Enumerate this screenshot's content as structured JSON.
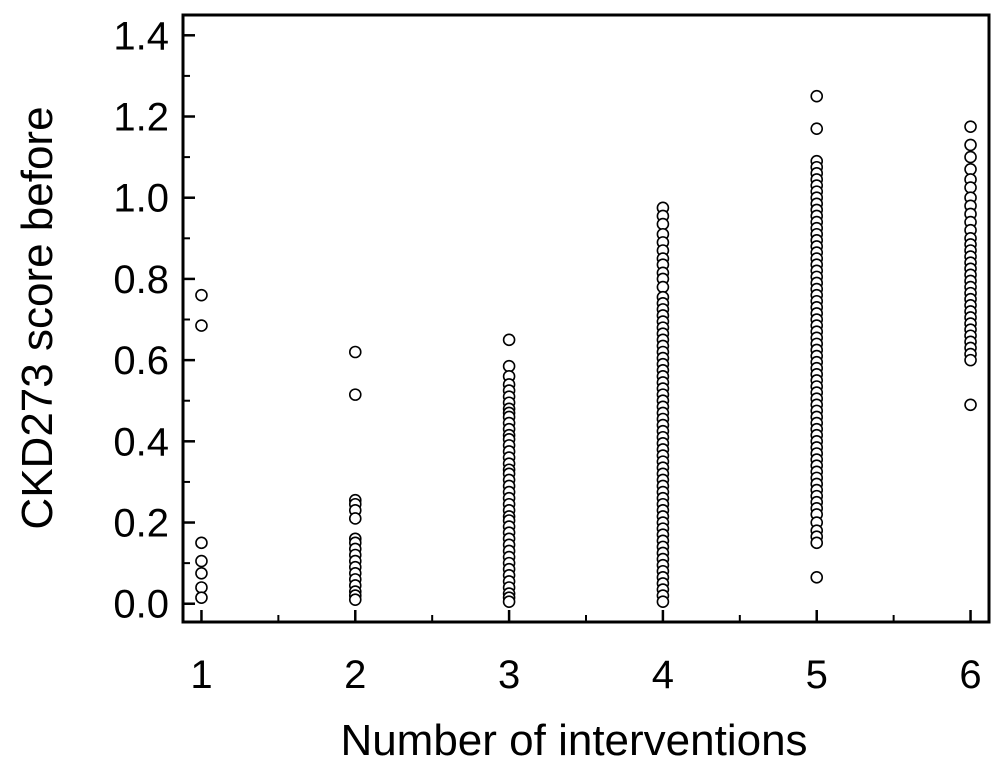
{
  "chart_data": {
    "type": "scatter",
    "xlabel": "Number of interventions",
    "ylabel": "CKD273 score before",
    "xlim": [
      0.88,
      6.12
    ],
    "ylim": [
      -0.045,
      1.45
    ],
    "x_ticks": [
      1,
      2,
      3,
      4,
      5,
      6
    ],
    "x_tick_labels": [
      "1",
      "2",
      "3",
      "4",
      "5",
      "6"
    ],
    "x_minor_ticks": [
      1.5,
      2.5,
      3.5,
      4.5,
      5.5
    ],
    "y_ticks": [
      0.0,
      0.2,
      0.4,
      0.6,
      0.8,
      1.0,
      1.2,
      1.4
    ],
    "y_tick_labels": [
      "0.0",
      "0.2",
      "0.4",
      "0.6",
      "0.8",
      "1.0",
      "1.2",
      "1.4"
    ],
    "y_minor_ticks": [
      0.1,
      0.3,
      0.5,
      0.7,
      0.9,
      1.1,
      1.3
    ],
    "grid": false,
    "marker": "open-circle",
    "groups": [
      {
        "x": 1,
        "y": [
          0.76,
          0.685,
          0.15,
          0.105,
          0.075,
          0.04,
          0.015
        ]
      },
      {
        "x": 2,
        "y": [
          0.62,
          0.515,
          0.255,
          0.245,
          0.23,
          0.21,
          0.16,
          0.15,
          0.135,
          0.12,
          0.105,
          0.09,
          0.075,
          0.06,
          0.045,
          0.03,
          0.02,
          0.01
        ]
      },
      {
        "x": 3,
        "y": [
          0.65,
          0.585,
          0.56,
          0.54,
          0.525,
          0.51,
          0.495,
          0.48,
          0.47,
          0.46,
          0.445,
          0.43,
          0.415,
          0.405,
          0.39,
          0.375,
          0.36,
          0.345,
          0.33,
          0.32,
          0.305,
          0.29,
          0.275,
          0.26,
          0.245,
          0.23,
          0.215,
          0.205,
          0.19,
          0.175,
          0.16,
          0.145,
          0.13,
          0.115,
          0.1,
          0.085,
          0.07,
          0.055,
          0.04,
          0.025,
          0.015,
          0.005
        ]
      },
      {
        "x": 4,
        "y": [
          0.975,
          0.955,
          0.935,
          0.91,
          0.89,
          0.87,
          0.85,
          0.835,
          0.815,
          0.8,
          0.78,
          0.755,
          0.74,
          0.725,
          0.71,
          0.695,
          0.68,
          0.665,
          0.65,
          0.635,
          0.62,
          0.605,
          0.59,
          0.575,
          0.56,
          0.545,
          0.53,
          0.515,
          0.5,
          0.485,
          0.47,
          0.455,
          0.44,
          0.425,
          0.41,
          0.395,
          0.38,
          0.365,
          0.35,
          0.335,
          0.32,
          0.305,
          0.29,
          0.275,
          0.26,
          0.245,
          0.23,
          0.215,
          0.2,
          0.185,
          0.17,
          0.155,
          0.14,
          0.125,
          0.11,
          0.095,
          0.08,
          0.065,
          0.05,
          0.035,
          0.02,
          0.005
        ]
      },
      {
        "x": 5,
        "y": [
          1.25,
          1.17,
          1.09,
          1.075,
          1.06,
          1.045,
          1.03,
          1.015,
          1.0,
          0.985,
          0.97,
          0.955,
          0.94,
          0.925,
          0.91,
          0.895,
          0.88,
          0.865,
          0.85,
          0.835,
          0.82,
          0.805,
          0.79,
          0.775,
          0.76,
          0.745,
          0.73,
          0.715,
          0.7,
          0.685,
          0.67,
          0.655,
          0.64,
          0.625,
          0.61,
          0.595,
          0.58,
          0.565,
          0.55,
          0.535,
          0.52,
          0.505,
          0.49,
          0.475,
          0.46,
          0.445,
          0.43,
          0.415,
          0.4,
          0.385,
          0.37,
          0.355,
          0.34,
          0.325,
          0.31,
          0.295,
          0.28,
          0.265,
          0.25,
          0.235,
          0.22,
          0.2,
          0.18,
          0.165,
          0.15,
          0.065
        ]
      },
      {
        "x": 6,
        "y": [
          1.175,
          1.13,
          1.1,
          1.07,
          1.045,
          1.025,
          1.0,
          0.98,
          0.96,
          0.94,
          0.92,
          0.9,
          0.885,
          0.87,
          0.855,
          0.84,
          0.825,
          0.81,
          0.795,
          0.78,
          0.765,
          0.75,
          0.735,
          0.72,
          0.705,
          0.69,
          0.675,
          0.66,
          0.645,
          0.63,
          0.615,
          0.6,
          0.49
        ]
      }
    ]
  }
}
